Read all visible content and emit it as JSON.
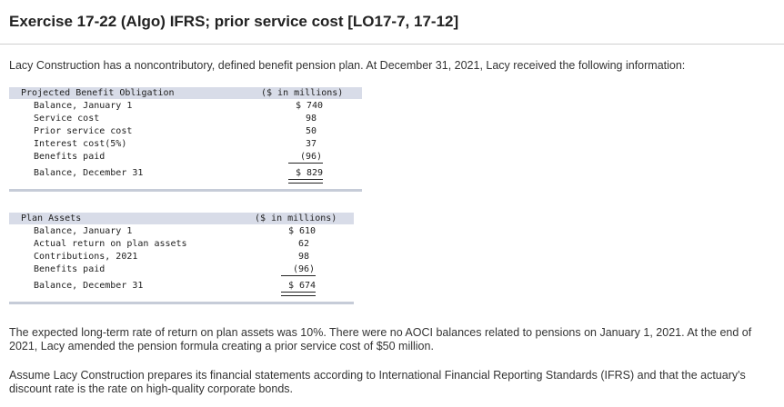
{
  "title": "Exercise 17-22 (Algo) IFRS; prior service cost [LO17-7, 17-12]",
  "intro": "Lacy Construction has a noncontributory, defined benefit pension plan. At December 31, 2021, Lacy received the following information:",
  "pbo": {
    "heading": "Projected Benefit Obligation",
    "unit": "($ in millions)",
    "rows": [
      {
        "label": "Balance, January 1",
        "value": "$ 740"
      },
      {
        "label": "Service cost",
        "value": "98"
      },
      {
        "label": "Prior service cost",
        "value": "50"
      },
      {
        "label": "Interest cost(5%)",
        "value": "37"
      },
      {
        "label": "Benefits paid",
        "value": "(96)"
      },
      {
        "label": "Balance, December 31",
        "value": "$ 829"
      }
    ]
  },
  "plan_assets": {
    "heading": "Plan Assets",
    "unit": "($ in millions)",
    "rows": [
      {
        "label": "Balance, January 1",
        "value": "$ 610"
      },
      {
        "label": "Actual return on plan assets",
        "value": "62"
      },
      {
        "label": "Contributions, 2021",
        "value": "98"
      },
      {
        "label": "Benefits paid",
        "value": "(96)"
      },
      {
        "label": "Balance, December 31",
        "value": "$ 674"
      }
    ]
  },
  "para2": "The expected long-term rate of return on plan assets was 10%. There were no AOCI balances related to pensions on January 1, 2021. At the end of 2021, Lacy amended the pension formula creating a prior service cost of $50 million.",
  "para3": "Assume Lacy Construction prepares its financial statements according to International Financial Reporting Standards (IFRS) and that the actuary's discount rate is the rate on high-quality corporate bonds."
}
